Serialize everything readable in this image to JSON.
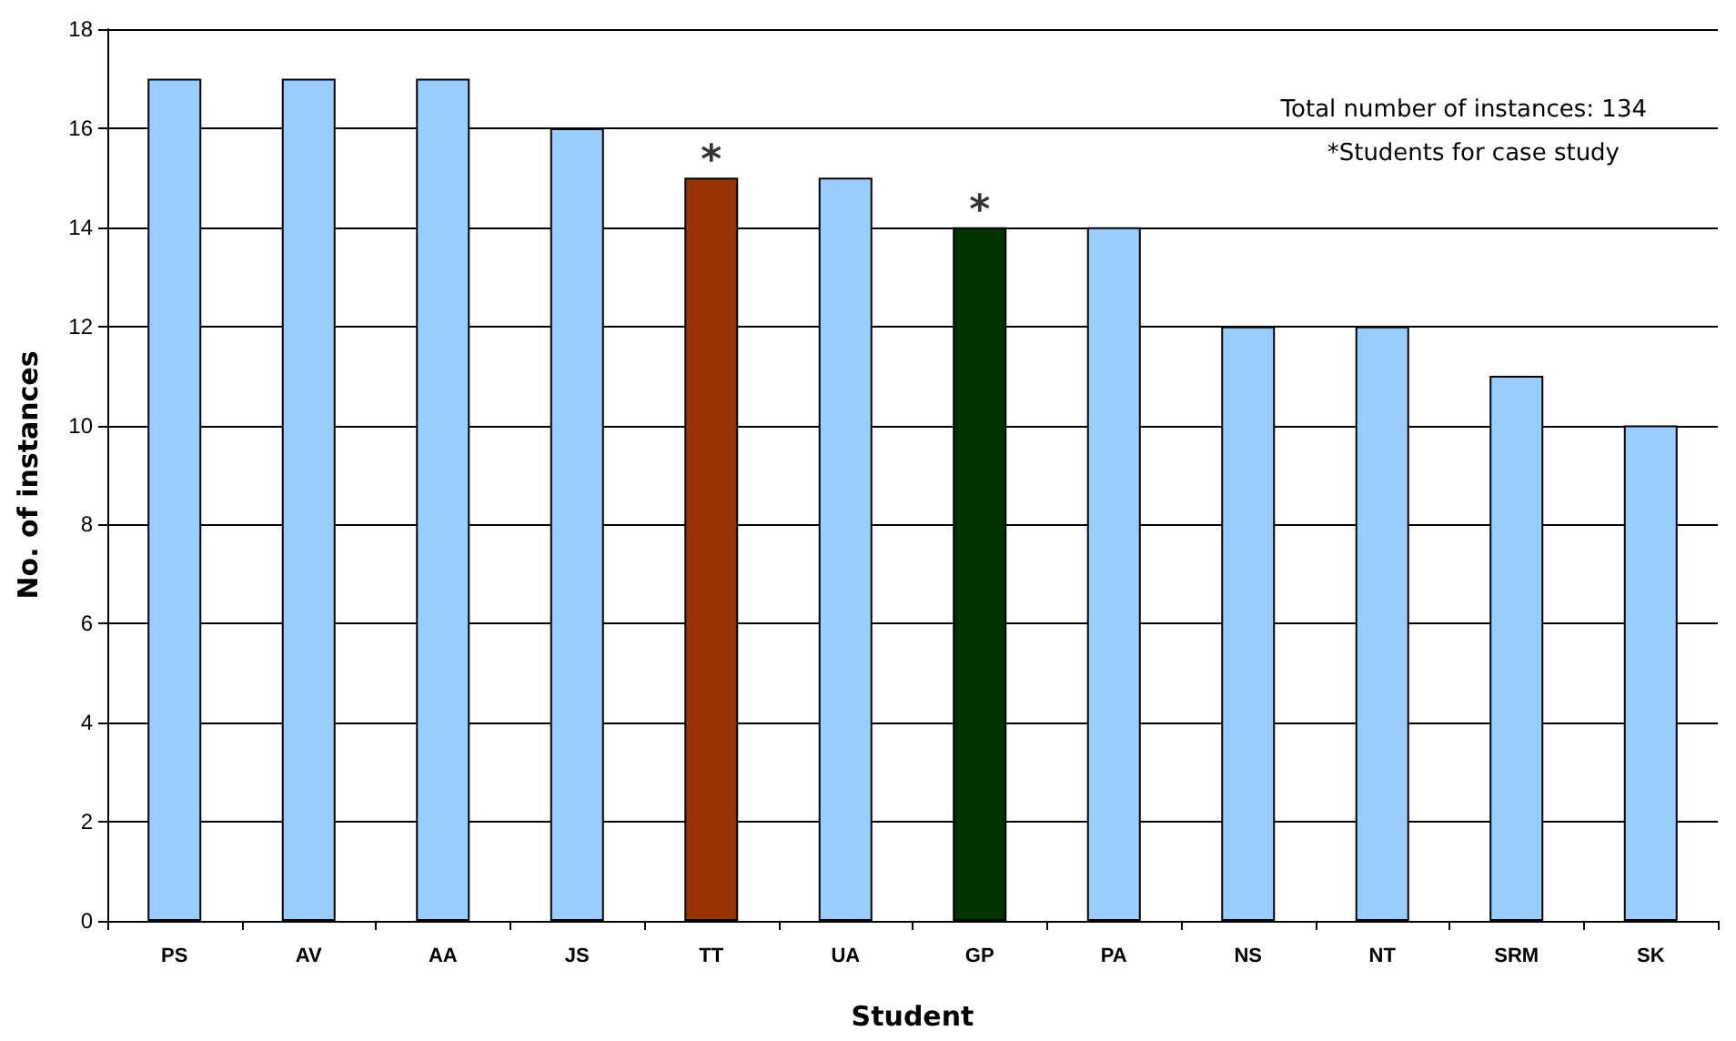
{
  "chart_data": {
    "type": "bar",
    "xlabel": "Student",
    "ylabel": "No. of instances",
    "categories": [
      "PS",
      "AV",
      "AA",
      "JS",
      "TT",
      "UA",
      "GP",
      "PA",
      "NS",
      "NT",
      "SRM",
      "SK"
    ],
    "values": [
      17,
      17,
      17,
      16,
      15,
      15,
      14,
      14,
      12,
      12,
      11,
      10
    ],
    "colors": [
      "#99ccff",
      "#99ccff",
      "#99ccff",
      "#99ccff",
      "#993300",
      "#99ccff",
      "#003300",
      "#99ccff",
      "#99ccff",
      "#99ccff",
      "#99ccff",
      "#99ccff"
    ],
    "ylim": [
      0,
      18
    ],
    "yticks": [
      0,
      2,
      4,
      6,
      8,
      10,
      12,
      14,
      16,
      18
    ],
    "grid": "y",
    "annotations": [
      "Total number of instances: 134",
      "*Students for case study",
      {
        "text": "*",
        "x": "TT",
        "y": 15
      },
      {
        "text": "*",
        "x": "GP",
        "y": 14
      }
    ]
  }
}
